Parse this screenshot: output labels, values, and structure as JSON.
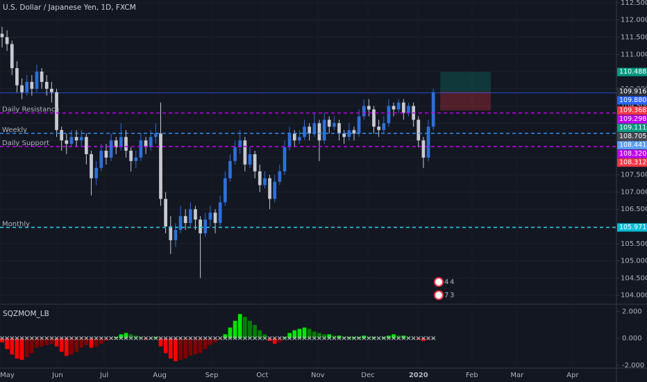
{
  "chart_data": [
    {
      "type": "candlestick",
      "title": "U.S. Dollar / Japanese Yen, 1D, FXCM",
      "up_color": "#2e6fd8",
      "down_color": "#c8cad0",
      "candles": [
        [
          111.6,
          111.8,
          111.2,
          111.5
        ],
        [
          111.5,
          111.7,
          111.1,
          111.3
        ],
        [
          111.3,
          111.4,
          110.4,
          110.6
        ],
        [
          110.6,
          110.8,
          109.9,
          110.1
        ],
        [
          110.1,
          110.3,
          109.7,
          109.9
        ],
        [
          109.9,
          110.4,
          109.8,
          110.2
        ],
        [
          110.2,
          110.4,
          109.8,
          110.0
        ],
        [
          110.0,
          110.7,
          109.9,
          110.5
        ],
        [
          110.5,
          110.6,
          110.0,
          110.2
        ],
        [
          110.2,
          110.4,
          109.8,
          110.0
        ],
        [
          110.0,
          110.2,
          109.6,
          109.9
        ],
        [
          109.9,
          110.0,
          108.6,
          108.8
        ],
        [
          108.8,
          108.9,
          108.2,
          108.5
        ],
        [
          108.5,
          108.7,
          108.1,
          108.4
        ],
        [
          108.4,
          108.8,
          108.3,
          108.6
        ],
        [
          108.6,
          108.8,
          108.3,
          108.5
        ],
        [
          108.5,
          108.8,
          108.3,
          108.6
        ],
        [
          108.6,
          108.7,
          107.8,
          108.1
        ],
        [
          108.1,
          108.2,
          106.9,
          107.4
        ],
        [
          107.4,
          107.9,
          107.2,
          107.7
        ],
        [
          107.7,
          108.4,
          107.6,
          108.2
        ],
        [
          108.2,
          108.4,
          107.8,
          108.0
        ],
        [
          108.0,
          108.7,
          107.9,
          108.5
        ],
        [
          108.5,
          108.6,
          108.1,
          108.3
        ],
        [
          108.3,
          109.0,
          108.2,
          108.6
        ],
        [
          108.6,
          108.8,
          108.0,
          108.2
        ],
        [
          108.2,
          108.3,
          107.6,
          107.9
        ],
        [
          107.9,
          108.2,
          107.7,
          108.0
        ],
        [
          108.0,
          108.7,
          107.9,
          108.5
        ],
        [
          108.5,
          108.6,
          108.1,
          108.3
        ],
        [
          108.3,
          108.8,
          108.2,
          108.6
        ],
        [
          108.6,
          109.0,
          108.4,
          108.7
        ],
        [
          108.7,
          109.6,
          106.6,
          106.8
        ],
        [
          106.8,
          107.0,
          105.8,
          106.0
        ],
        [
          106.0,
          106.3,
          105.2,
          105.6
        ],
        [
          105.6,
          106.1,
          105.4,
          105.9
        ],
        [
          105.9,
          106.6,
          105.8,
          106.3
        ],
        [
          106.3,
          106.5,
          105.9,
          106.1
        ],
        [
          106.1,
          106.7,
          106.0,
          106.5
        ],
        [
          106.5,
          106.6,
          105.9,
          106.2
        ],
        [
          106.2,
          106.3,
          104.5,
          105.8
        ],
        [
          105.8,
          106.4,
          105.7,
          106.2
        ],
        [
          106.2,
          106.6,
          106.0,
          106.4
        ],
        [
          106.4,
          106.5,
          105.8,
          106.1
        ],
        [
          106.1,
          106.9,
          106.0,
          106.7
        ],
        [
          106.7,
          107.6,
          106.6,
          107.4
        ],
        [
          107.4,
          108.1,
          107.3,
          107.9
        ],
        [
          107.9,
          108.5,
          107.8,
          108.3
        ],
        [
          108.3,
          108.8,
          108.1,
          108.5
        ],
        [
          108.5,
          108.6,
          107.6,
          107.8
        ],
        [
          107.8,
          108.3,
          107.7,
          108.1
        ],
        [
          108.1,
          108.2,
          107.4,
          107.6
        ],
        [
          107.6,
          107.8,
          107.0,
          107.2
        ],
        [
          107.2,
          107.6,
          107.1,
          107.4
        ],
        [
          107.4,
          107.5,
          106.5,
          106.8
        ],
        [
          106.8,
          107.5,
          106.7,
          107.3
        ],
        [
          107.3,
          107.8,
          107.2,
          107.6
        ],
        [
          107.6,
          108.5,
          107.5,
          108.3
        ],
        [
          108.3,
          108.9,
          108.2,
          108.7
        ],
        [
          108.7,
          108.8,
          108.3,
          108.5
        ],
        [
          108.5,
          108.8,
          108.4,
          108.6
        ],
        [
          108.6,
          109.1,
          108.5,
          108.9
        ],
        [
          108.9,
          109.0,
          108.5,
          108.7
        ],
        [
          108.7,
          109.3,
          108.6,
          109.0
        ],
        [
          109.0,
          109.1,
          107.9,
          108.5
        ],
        [
          108.5,
          109.3,
          108.4,
          109.1
        ],
        [
          109.1,
          109.2,
          108.7,
          108.9
        ],
        [
          108.9,
          109.2,
          108.8,
          109.0
        ],
        [
          109.0,
          109.1,
          108.5,
          108.7
        ],
        [
          108.7,
          108.8,
          108.4,
          108.6
        ],
        [
          108.6,
          109.0,
          108.5,
          108.8
        ],
        [
          108.8,
          108.9,
          108.5,
          108.7
        ],
        [
          108.7,
          109.4,
          108.6,
          109.2
        ],
        [
          109.2,
          109.7,
          109.1,
          109.5
        ],
        [
          109.5,
          109.7,
          109.2,
          109.4
        ],
        [
          109.4,
          109.5,
          108.7,
          108.9
        ],
        [
          108.9,
          109.1,
          108.6,
          108.8
        ],
        [
          108.8,
          109.2,
          108.7,
          109.0
        ],
        [
          109.0,
          109.7,
          108.9,
          109.5
        ],
        [
          109.5,
          109.6,
          109.2,
          109.4
        ],
        [
          109.4,
          109.7,
          109.3,
          109.6
        ],
        [
          109.6,
          109.7,
          109.1,
          109.3
        ],
        [
          109.3,
          109.6,
          109.2,
          109.5
        ],
        [
          109.5,
          109.6,
          108.9,
          109.1
        ],
        [
          109.1,
          109.2,
          108.3,
          108.5
        ],
        [
          108.5,
          108.6,
          107.7,
          108.0
        ],
        [
          108.0,
          109.1,
          107.9,
          108.9
        ],
        [
          108.9,
          110.0,
          108.8,
          109.9
        ]
      ],
      "xlim": [
        -0.42,
        123.95
      ],
      "xticks": [
        {
          "value": -0.4,
          "label": "May"
        },
        {
          "value": 11.2,
          "label": "Jun"
        },
        {
          "value": 20.6,
          "label": "Jul"
        },
        {
          "value": 31.8,
          "label": "Aug"
        },
        {
          "value": 42.3,
          "label": "Sep"
        },
        {
          "value": 52.5,
          "label": "Oct"
        },
        {
          "value": 63.7,
          "label": "Nov"
        },
        {
          "value": 73.8,
          "label": "Dec"
        },
        {
          "value": 84.0,
          "label": "2020"
        },
        {
          "value": 94.8,
          "label": "Feb"
        },
        {
          "value": 103.9,
          "label": "Mar"
        },
        {
          "value": 115.1,
          "label": "Apr"
        }
      ],
      "ylim": [
        103.74,
        112.58
      ],
      "yticks": [
        {
          "value": 104,
          "label": "104.000"
        },
        {
          "value": 104.5,
          "label": "104.500"
        },
        {
          "value": 105,
          "label": "105.000"
        },
        {
          "value": 105.5,
          "label": "105.500"
        },
        {
          "value": 106,
          "label": "106.000"
        },
        {
          "value": 106.5,
          "label": "106.500"
        },
        {
          "value": 107,
          "label": "107.000"
        },
        {
          "value": 107.5,
          "label": "107.500"
        },
        {
          "value": 108,
          "label": "108.000"
        },
        {
          "value": 108.5,
          "label": "108.500"
        },
        {
          "value": 109,
          "label": "109.000"
        },
        {
          "value": 109.5,
          "label": "109.500"
        },
        {
          "value": 110,
          "label": "110.000"
        },
        {
          "value": 110.5,
          "label": "110.500"
        },
        {
          "value": 111,
          "label": "111.000"
        },
        {
          "value": 111.5,
          "label": "111.500"
        },
        {
          "value": 112,
          "label": "112.000"
        },
        {
          "value": 112.5,
          "label": "112.500"
        }
      ],
      "levels": [
        {
          "name": "Daily Resistance",
          "value": 109.298,
          "color": "#c000f0",
          "label_color": "#c8a060"
        },
        {
          "name": "Weekly",
          "value": 108.705,
          "color": "#2f8ff0",
          "label_color": "#26c6da"
        },
        {
          "name": "Daily Support",
          "value": 108.32,
          "color": "#c000f0",
          "label_color": "#c8a060"
        },
        {
          "name": "Monthly",
          "value": 105.971,
          "color": "#26c6da",
          "label_color": "#26a69a"
        }
      ],
      "last_price_line": {
        "value": 109.88,
        "color": "#2962ff"
      },
      "position": {
        "x_start": 88.4,
        "x_end": 98.6,
        "target": 110.488,
        "entry": 109.916,
        "stop": 109.368
      },
      "price_tags": [
        {
          "value": 110.488,
          "label": "110.488",
          "color": "#089981"
        },
        {
          "value": 109.916,
          "label": "109.916",
          "color": "#2a2e39"
        },
        {
          "value": 109.88,
          "label": "109.880",
          "color": "#2962ff"
        },
        {
          "value": 109.368,
          "label": "109.368",
          "color": "#f23645"
        },
        {
          "value": 109.298,
          "label": "109.298",
          "color": "#c000f0"
        },
        {
          "value": 109.111,
          "label": "109.111",
          "color": "#089981"
        },
        {
          "value": 108.705,
          "label": "108.705",
          "color": "#434651"
        },
        {
          "value": 108.441,
          "label": "108.441",
          "color": "#5b9cf6"
        },
        {
          "value": 108.32,
          "label": "108.320",
          "color": "#c000f0"
        },
        {
          "value": 108.312,
          "label": "108.312",
          "color": "#f23645"
        },
        {
          "value": 105.971,
          "label": "105.971",
          "color": "#00bcd4"
        }
      ],
      "badges": [
        [
          "4",
          "4"
        ],
        [
          "7",
          "3"
        ]
      ]
    },
    {
      "type": "histogram",
      "title": "SQZMOM_LB",
      "values": [
        -0.3,
        -0.8,
        -1.2,
        -1.5,
        -1.6,
        -1.4,
        -1.1,
        -0.7,
        -0.6,
        -0.5,
        -0.4,
        -0.6,
        -1.0,
        -1.3,
        -1.2,
        -1.0,
        -0.7,
        -0.5,
        -0.7,
        -0.6,
        -0.4,
        -0.2,
        -0.1,
        0.1,
        0.3,
        0.4,
        0.3,
        0.2,
        0.1,
        -0.1,
        0.0,
        0.1,
        -0.6,
        -1.1,
        -1.5,
        -1.7,
        -1.6,
        -1.5,
        -1.3,
        -1.2,
        -1.1,
        -0.8,
        -0.5,
        -0.3,
        -0.1,
        0.3,
        0.8,
        1.3,
        1.8,
        1.6,
        1.3,
        1.0,
        0.6,
        0.3,
        -0.2,
        -0.4,
        -0.3,
        0.1,
        0.4,
        0.6,
        0.7,
        0.8,
        0.7,
        0.5,
        0.4,
        0.3,
        0.3,
        0.2,
        0.2,
        0.1,
        0.1,
        0.1,
        0.1,
        0.2,
        0.1,
        0.1,
        0.0,
        0.1,
        0.2,
        0.3,
        0.2,
        0.2,
        0.1,
        0.0,
        -0.1,
        -0.2,
        -0.1,
        0.0
      ],
      "colors": {
        "up_rising": "#00e600",
        "up_falling": "#008000",
        "down_falling": "#ff0000",
        "down_rising": "#800000",
        "squeeze": "#ff9800"
      },
      "ylim": [
        -2.21,
        2.53
      ],
      "yticks": [
        {
          "value": 2,
          "label": "2.000"
        },
        {
          "value": 0,
          "label": "0.000"
        },
        {
          "value": -2,
          "label": "-2.000"
        }
      ]
    }
  ]
}
